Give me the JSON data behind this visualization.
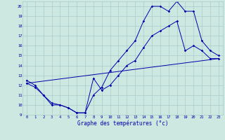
{
  "xlabel": "Graphe des températures (°c)",
  "bg_color": "#cce8e0",
  "grid_color": "#aacccc",
  "line_color": "#0000aa",
  "xlim": [
    -0.5,
    23.5
  ],
  "ylim": [
    9,
    20.5
  ],
  "xticks": [
    0,
    1,
    2,
    3,
    4,
    5,
    6,
    7,
    8,
    9,
    10,
    11,
    12,
    13,
    14,
    15,
    16,
    17,
    18,
    19,
    20,
    21,
    22,
    23
  ],
  "yticks": [
    9,
    10,
    11,
    12,
    13,
    14,
    15,
    16,
    17,
    18,
    19,
    20
  ],
  "series1_x": [
    0,
    1,
    2,
    3,
    4,
    5,
    6,
    7,
    8,
    9,
    10,
    11,
    12,
    13,
    14,
    15,
    16,
    17,
    18,
    19,
    20,
    21,
    22,
    23
  ],
  "series1_y": [
    12.5,
    12.0,
    11.0,
    10.2,
    10.0,
    9.7,
    9.2,
    9.2,
    12.7,
    11.5,
    12.0,
    13.0,
    14.0,
    14.5,
    15.8,
    17.0,
    17.5,
    18.0,
    18.5,
    15.5,
    16.0,
    15.5,
    14.7,
    14.7
  ],
  "series2_x": [
    0,
    1,
    2,
    3,
    4,
    5,
    6,
    7,
    8,
    9,
    10,
    11,
    12,
    13,
    14,
    15,
    16,
    17,
    18,
    19,
    20,
    21,
    22,
    23
  ],
  "series2_y": [
    12.2,
    11.8,
    11.0,
    10.0,
    10.0,
    9.7,
    9.2,
    9.2,
    11.0,
    11.8,
    13.5,
    14.5,
    15.5,
    16.5,
    18.5,
    20.0,
    20.0,
    19.5,
    20.5,
    19.5,
    19.5,
    16.5,
    15.5,
    15.0
  ],
  "series3_x": [
    0,
    23
  ],
  "series3_y": [
    12.2,
    14.7
  ],
  "tick_fontsize": 4.0,
  "xlabel_fontsize": 5.5
}
